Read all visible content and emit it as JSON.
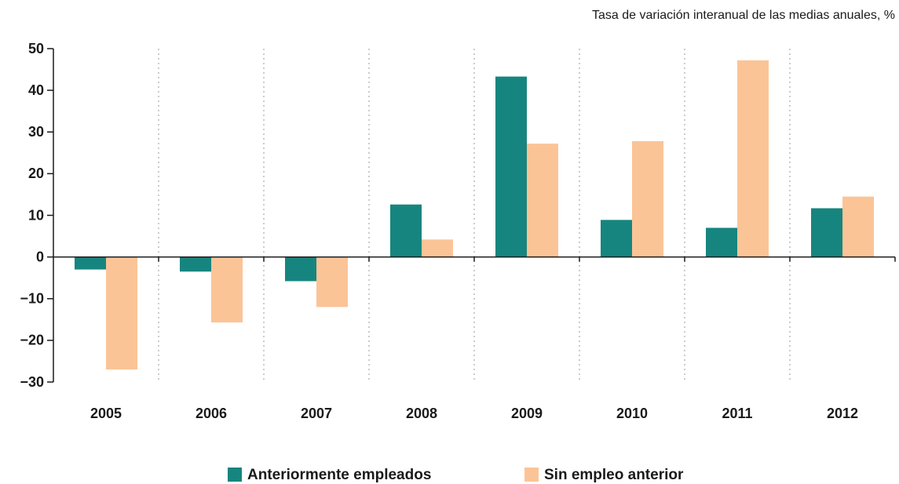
{
  "chart_data": {
    "type": "bar",
    "subtitle": "Tasa de variación interanual de las medias anuales, %",
    "categories": [
      "2005",
      "2006",
      "2007",
      "2008",
      "2009",
      "2010",
      "2011",
      "2012"
    ],
    "series": [
      {
        "name": "Anteriormente empleados",
        "color": "#17857f",
        "values": [
          -3,
          -3.5,
          -5.8,
          12.6,
          43.3,
          8.9,
          7,
          11.7
        ]
      },
      {
        "name": "Sin empleo anterior",
        "color": "#fbc497",
        "values": [
          -27,
          -15.7,
          -12,
          4.2,
          27.2,
          27.8,
          47.2,
          14.5
        ]
      }
    ],
    "ylim": [
      -30,
      50
    ],
    "yticks": [
      {
        "value": -30,
        "label": "−30"
      },
      {
        "value": -20,
        "label": "−20"
      },
      {
        "value": -10,
        "label": "−10"
      },
      0,
      10,
      20,
      30,
      40,
      50
    ],
    "legend": "bottom"
  }
}
